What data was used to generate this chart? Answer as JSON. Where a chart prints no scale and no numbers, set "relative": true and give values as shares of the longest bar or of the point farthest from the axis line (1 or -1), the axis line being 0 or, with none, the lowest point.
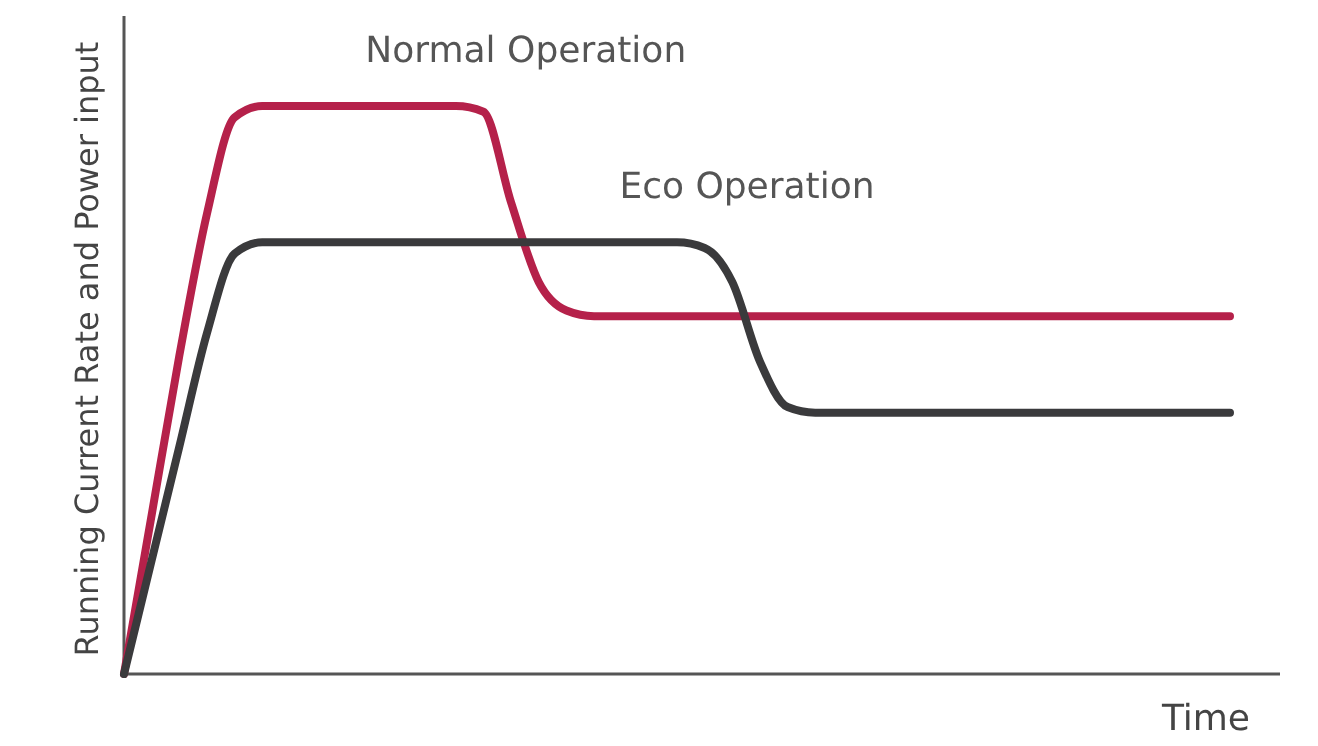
{
  "chart_data": {
    "type": "line",
    "relative": true,
    "xlabel": "Time",
    "ylabel": "Running Current Rate and Power input",
    "categories": [
      null,
      null,
      null,
      null,
      null,
      null,
      null,
      null,
      null,
      null,
      null,
      null,
      null,
      null,
      null,
      null,
      null,
      null,
      null,
      null,
      null,
      null,
      null,
      null,
      null,
      null,
      null,
      null,
      null,
      null,
      null,
      null,
      null,
      null,
      null,
      null,
      null,
      null,
      null,
      null,
      null
    ],
    "series": [
      {
        "name": "Normal Operation",
        "color": "#b5214a",
        "values": [
          0,
          0.28,
          0.56,
          0.81,
          0.98,
          1,
          1,
          1,
          1,
          1,
          1,
          1,
          1,
          0.99,
          0.83,
          0.69,
          0.64,
          0.63,
          0.63,
          0.63,
          0.63,
          0.63,
          0.63,
          0.63,
          0.63,
          0.63,
          0.63,
          0.63,
          0.63,
          0.63,
          0.63,
          0.63,
          0.63,
          0.63,
          0.63,
          0.63,
          0.63,
          0.63,
          0.63,
          0.63,
          0.63
        ]
      },
      {
        "name": "Eco Operation",
        "color": "#3a3a3c",
        "values": [
          0,
          0.2,
          0.4,
          0.6,
          0.74,
          0.76,
          0.76,
          0.76,
          0.76,
          0.76,
          0.76,
          0.76,
          0.76,
          0.76,
          0.76,
          0.76,
          0.76,
          0.76,
          0.76,
          0.76,
          0.76,
          0.75,
          0.69,
          0.55,
          0.47,
          0.46,
          0.46,
          0.46,
          0.46,
          0.46,
          0.46,
          0.46,
          0.46,
          0.46,
          0.46,
          0.46,
          0.46,
          0.46,
          0.46,
          0.46,
          0.46
        ]
      }
    ],
    "legend": false,
    "marker": "none",
    "line_style": "solid"
  }
}
